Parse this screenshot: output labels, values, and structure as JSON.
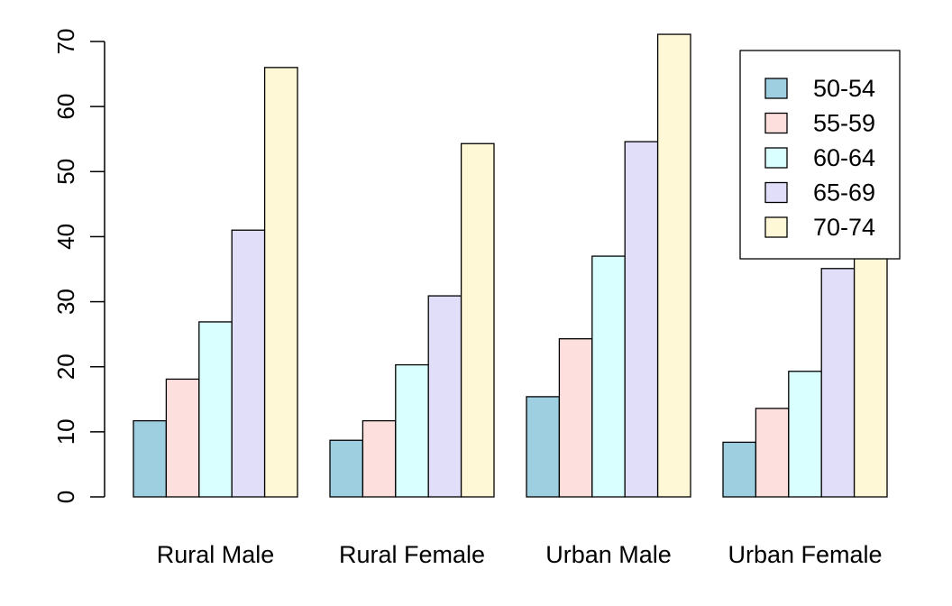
{
  "chart_data": {
    "type": "bar",
    "categories": [
      "Rural Male",
      "Rural Female",
      "Urban Male",
      "Urban Female"
    ],
    "series": [
      {
        "name": "50-54",
        "color": "#9ecfe0",
        "values": [
          11.7,
          8.7,
          15.4,
          8.4
        ]
      },
      {
        "name": "55-59",
        "color": "#fde0dd",
        "values": [
          18.1,
          11.7,
          24.3,
          13.6
        ]
      },
      {
        "name": "60-64",
        "color": "#d9ffff",
        "values": [
          26.9,
          20.3,
          37.0,
          19.3
        ]
      },
      {
        "name": "65-69",
        "color": "#e0def9",
        "values": [
          41.0,
          30.9,
          54.6,
          35.1
        ]
      },
      {
        "name": "70-74",
        "color": "#fff8d6",
        "values": [
          66.0,
          54.3,
          71.1,
          50.0
        ]
      }
    ],
    "title": "",
    "xlabel": "",
    "ylabel": "",
    "ylim": [
      0,
      70
    ],
    "yticks": [
      "0",
      "10",
      "20",
      "30",
      "40",
      "50",
      "60",
      "70"
    ],
    "grid": false,
    "legend": "top-right"
  }
}
